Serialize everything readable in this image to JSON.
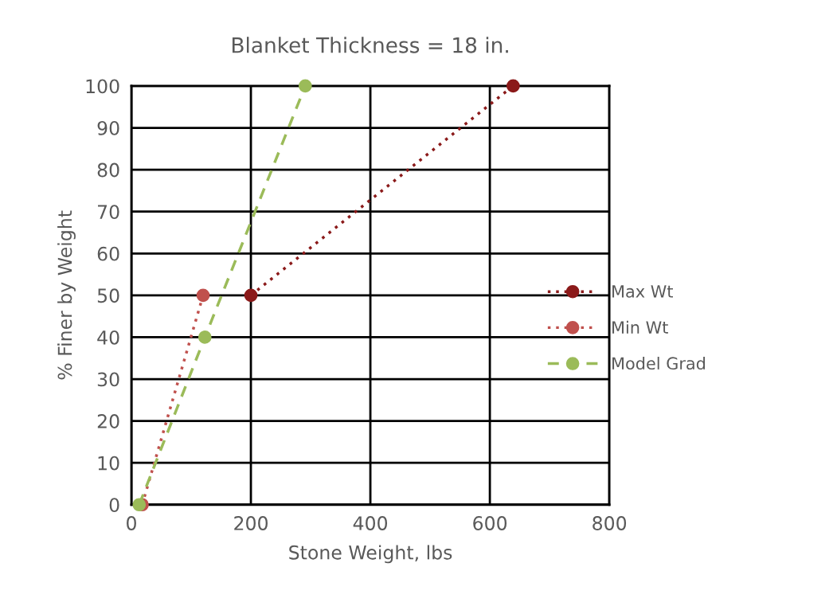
{
  "chart_data": {
    "type": "line",
    "title": "Blanket Thickness = 18 in.",
    "xlabel": "Stone Weight, lbs",
    "ylabel": "% Finer by Weight",
    "xlim": [
      0,
      800
    ],
    "xticks": [
      0,
      200,
      400,
      600,
      800
    ],
    "ylim": [
      0,
      100
    ],
    "yticks": [
      0,
      10,
      20,
      30,
      40,
      50,
      60,
      70,
      80,
      90,
      100
    ],
    "grid": true,
    "legend": "right",
    "marker": "circle",
    "series": [
      {
        "name": "Max Wt",
        "color": "#8b1a1a",
        "line_style": "dotted",
        "x": [
          200,
          639
        ],
        "values": [
          50,
          100
        ]
      },
      {
        "name": "Min Wt",
        "color": "#c0504d",
        "line_style": "dotted",
        "x": [
          18,
          120
        ],
        "values": [
          0,
          50
        ]
      },
      {
        "name": "Model Grad",
        "color": "#9bbb59",
        "line_style": "dashed",
        "x": [
          13,
          123,
          291
        ],
        "values": [
          0,
          40,
          100
        ]
      }
    ]
  }
}
